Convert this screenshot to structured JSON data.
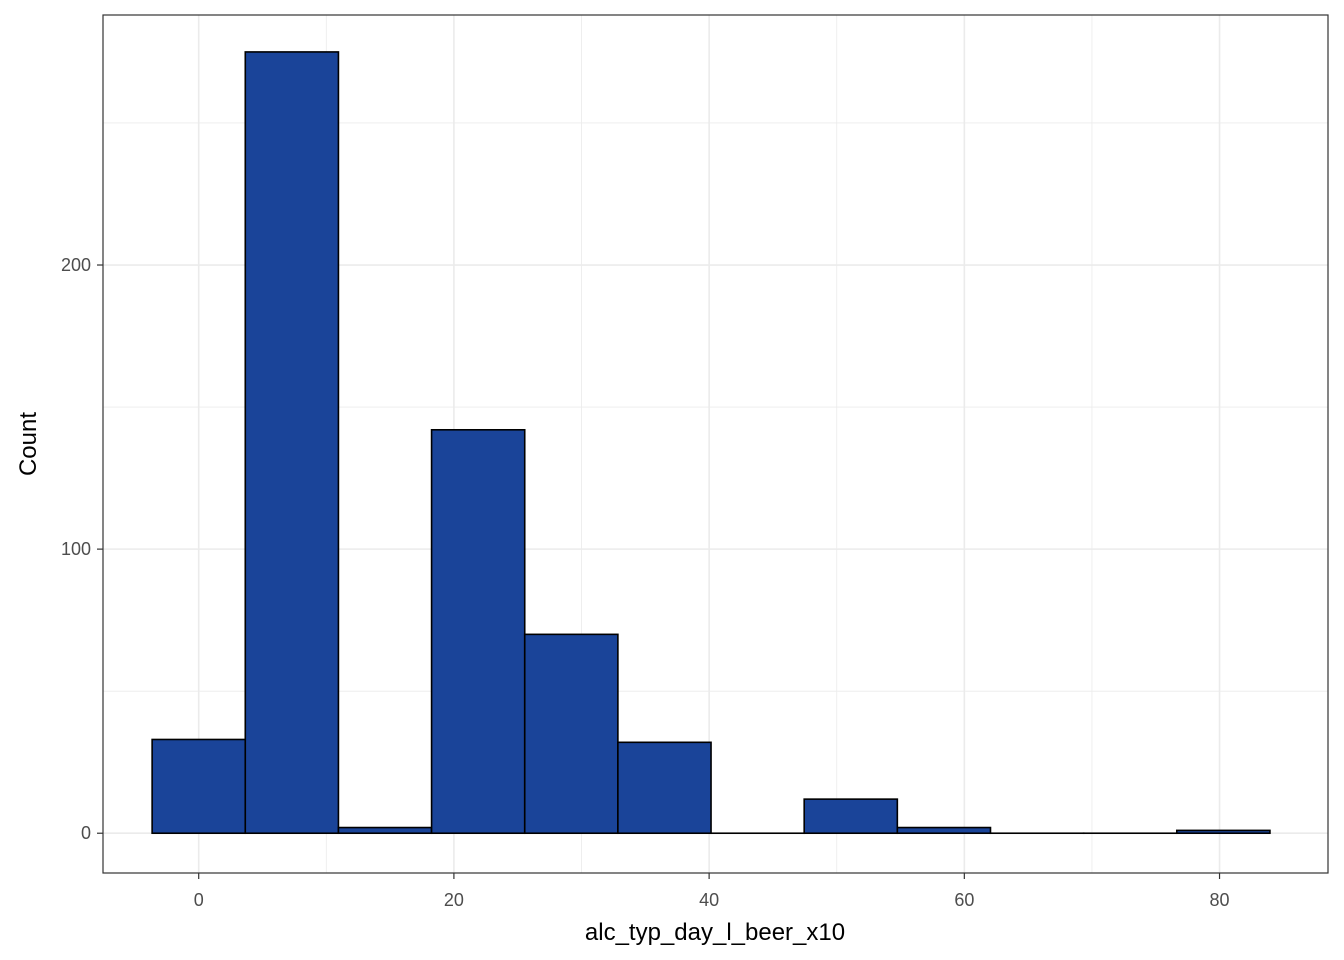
{
  "chart_data": {
    "type": "bar",
    "subtype": "histogram",
    "xlabel": "alc_typ_day_l_beer_x10",
    "ylabel": "Count",
    "xlim": [
      -7.5,
      88.5
    ],
    "ylim": [
      -14,
      288
    ],
    "x_ticks": [
      0,
      20,
      40,
      60,
      80
    ],
    "y_ticks": [
      0,
      100,
      200
    ],
    "x_minor_ticks": [
      10,
      30,
      50,
      70
    ],
    "y_minor_ticks": [
      50,
      150,
      250
    ],
    "grid": true,
    "bin_width": 7.3,
    "bins": [
      {
        "start": -3.65,
        "end": 3.65,
        "count": 33
      },
      {
        "start": 3.65,
        "end": 10.95,
        "count": 275
      },
      {
        "start": 10.95,
        "end": 18.25,
        "count": 2
      },
      {
        "start": 18.25,
        "end": 25.55,
        "count": 142
      },
      {
        "start": 25.55,
        "end": 32.85,
        "count": 70
      },
      {
        "start": 32.85,
        "end": 40.15,
        "count": 32
      },
      {
        "start": 40.15,
        "end": 47.45,
        "count": 0
      },
      {
        "start": 47.45,
        "end": 54.75,
        "count": 12
      },
      {
        "start": 54.75,
        "end": 62.05,
        "count": 2
      },
      {
        "start": 62.05,
        "end": 69.35,
        "count": 0
      },
      {
        "start": 69.35,
        "end": 76.65,
        "count": 0
      },
      {
        "start": 76.65,
        "end": 83.95,
        "count": 1
      }
    ],
    "bar_fill": "#1a4499",
    "bar_stroke": "#000000",
    "grid_color": "#ebebeb",
    "panel_border": "#333333"
  }
}
